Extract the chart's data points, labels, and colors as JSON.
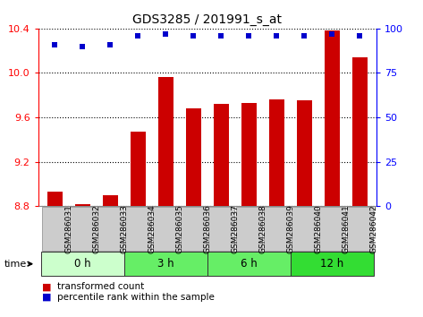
{
  "title": "GDS3285 / 201991_s_at",
  "samples": [
    "GSM286031",
    "GSM286032",
    "GSM286033",
    "GSM286034",
    "GSM286035",
    "GSM286036",
    "GSM286037",
    "GSM286038",
    "GSM286039",
    "GSM286040",
    "GSM286041",
    "GSM286042"
  ],
  "bar_values": [
    8.93,
    8.82,
    8.9,
    9.47,
    9.96,
    9.68,
    9.72,
    9.73,
    9.76,
    9.75,
    10.38,
    10.14
  ],
  "percentile_values": [
    91,
    90,
    91,
    96,
    97,
    96,
    96,
    96,
    96,
    96,
    97,
    96
  ],
  "bar_color": "#CC0000",
  "percentile_color": "#0000CC",
  "ylim_left": [
    8.8,
    10.4
  ],
  "ylim_right": [
    0,
    100
  ],
  "yticks_left": [
    8.8,
    9.2,
    9.6,
    10.0,
    10.4
  ],
  "yticks_right": [
    0,
    25,
    50,
    75,
    100
  ],
  "groups": [
    {
      "label": "0 h",
      "start": 0,
      "end": 3,
      "color": "#ccffcc"
    },
    {
      "label": "3 h",
      "start": 3,
      "end": 6,
      "color": "#66ee66"
    },
    {
      "label": "6 h",
      "start": 6,
      "end": 9,
      "color": "#66ee66"
    },
    {
      "label": "12 h",
      "start": 9,
      "end": 12,
      "color": "#33dd33"
    }
  ],
  "time_label": "time",
  "legend_bar_label": "transformed count",
  "legend_pct_label": "percentile rank within the sample",
  "bar_bottom": 8.8,
  "bar_width": 0.55,
  "sample_box_color": "#cccccc",
  "sample_box_edge": "#888888",
  "plot_bg": "#ffffff",
  "spine_color": "#000000"
}
